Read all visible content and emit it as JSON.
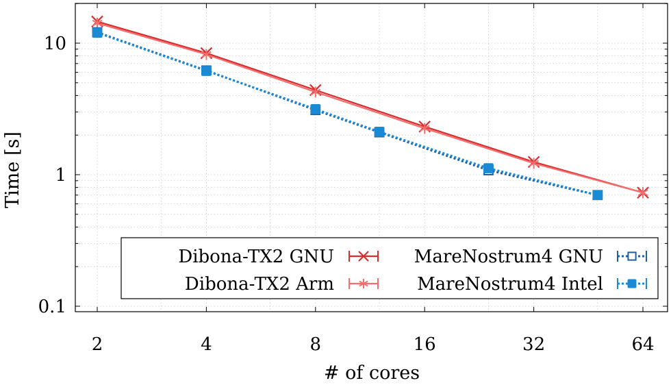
{
  "chart_data": {
    "type": "line",
    "title": "",
    "xlabel": "# of cores",
    "ylabel": "Time [s]",
    "xscale": "log2",
    "yscale": "log10",
    "xlim": [
      2,
      64
    ],
    "ylim": [
      0.1,
      20
    ],
    "x_ticks": [
      2,
      4,
      8,
      16,
      32,
      64
    ],
    "x_tick_labels": [
      "2",
      "4",
      "8",
      "16",
      "32",
      "64"
    ],
    "y_ticks": [
      0.1,
      1,
      10
    ],
    "y_tick_labels": [
      "0.1",
      "1",
      "10"
    ],
    "grid": true,
    "legend_position": "bottom-right",
    "series": [
      {
        "name": "Dibona-TX2 GNU",
        "color": "#d62f2f",
        "marker": "x",
        "dash": "solid",
        "x": [
          2,
          4,
          8,
          16,
          32,
          64
        ],
        "y": [
          14.6,
          8.4,
          4.4,
          2.32,
          1.25,
          0.73
        ]
      },
      {
        "name": "Dibona-TX2 Arm",
        "color": "#f46e6e",
        "marker": "asterisk",
        "dash": "solid",
        "x": [
          2,
          4,
          8,
          16,
          32,
          64
        ],
        "y": [
          14.2,
          8.2,
          4.25,
          2.25,
          1.22,
          0.73
        ]
      },
      {
        "name": "MareNostrum4 GNU",
        "color": "#1f5fa0",
        "marker": "open-square",
        "dash": "dotted",
        "x": [
          2,
          4,
          8,
          12,
          24,
          48
        ],
        "y": [
          12.1,
          6.2,
          3.1,
          2.1,
          1.08,
          0.7
        ]
      },
      {
        "name": "MareNostrum4 Intel",
        "color": "#1a8ad4",
        "marker": "filled-square",
        "dash": "dotted",
        "x": [
          2,
          4,
          8,
          12,
          24,
          48
        ],
        "y": [
          12.0,
          6.15,
          3.15,
          2.12,
          1.12,
          0.7
        ]
      }
    ]
  }
}
